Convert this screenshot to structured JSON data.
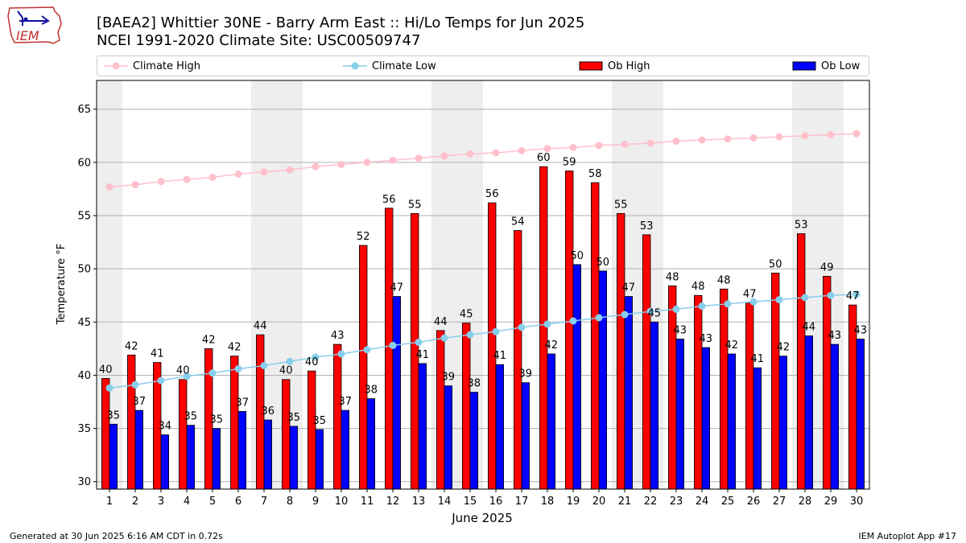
{
  "header": {
    "title": "[BAEA2] Whittier 30NE - Barry Arm East :: Hi/Lo Temps for Jun 2025",
    "subtitle": "NCEI 1991-2020 Climate Site: USC00509747",
    "logo_text": "IEM"
  },
  "legend": {
    "climate_high": "Climate High",
    "climate_low": "Climate Low",
    "ob_high": "Ob High",
    "ob_low": "Ob Low"
  },
  "footer": {
    "generated": "Generated at 30 Jun 2025 6:16 AM CDT in 0.72s",
    "app": "IEM Autoplot App #17"
  },
  "colors": {
    "ob_high": "#ff0000",
    "ob_low": "#0000ff",
    "climate_high": "#ffc0cb",
    "climate_low": "#87ceeb",
    "weekend_band": "#eeeeee",
    "grid": "#b0b0b0"
  },
  "chart_data": {
    "type": "bar",
    "xlabel": "June 2025",
    "ylabel": "Temperature °F",
    "xlim": [
      0.5,
      30.5
    ],
    "ylim": [
      29.3,
      67.7
    ],
    "yticks": [
      30,
      35,
      40,
      45,
      50,
      55,
      60,
      65
    ],
    "grid": "horizontal",
    "legend_position": "top",
    "categories": [
      "1",
      "2",
      "3",
      "4",
      "5",
      "6",
      "7",
      "8",
      "9",
      "10",
      "11",
      "12",
      "13",
      "14",
      "15",
      "16",
      "17",
      "18",
      "19",
      "20",
      "21",
      "22",
      "23",
      "24",
      "25",
      "26",
      "27",
      "28",
      "29",
      "30"
    ],
    "weekend_days": [
      1,
      7,
      8,
      14,
      15,
      21,
      22,
      28,
      29
    ],
    "series": [
      {
        "name": "Ob High",
        "kind": "bar",
        "values": [
          39.7,
          41.9,
          41.2,
          39.6,
          42.5,
          41.8,
          43.8,
          39.6,
          40.4,
          42.9,
          52.2,
          55.7,
          55.2,
          44.2,
          44.9,
          56.2,
          53.6,
          59.6,
          59.2,
          58.1,
          55.2,
          53.2,
          48.4,
          47.5,
          48.1,
          46.8,
          49.6,
          53.3,
          49.3,
          46.6
        ],
        "labels": [
          "40",
          "42",
          "41",
          "40",
          "42",
          "42",
          "44",
          "40",
          "40",
          "43",
          "52",
          "56",
          "55",
          "44",
          "45",
          "56",
          "54",
          "60",
          "59",
          "58",
          "55",
          "53",
          "48",
          "48",
          "48",
          "47",
          "50",
          "53",
          "49",
          "47"
        ]
      },
      {
        "name": "Ob Low",
        "kind": "bar",
        "values": [
          35.4,
          36.7,
          34.4,
          35.3,
          35.0,
          36.6,
          35.8,
          35.2,
          34.9,
          36.7,
          37.8,
          47.4,
          41.1,
          39.0,
          38.4,
          41.0,
          39.3,
          42.0,
          50.4,
          49.8,
          47.4,
          45.0,
          43.4,
          42.6,
          42.0,
          40.7,
          41.8,
          43.7,
          42.9,
          43.4
        ],
        "labels": [
          "35",
          "37",
          "34",
          "35",
          "35",
          "37",
          "36",
          "35",
          "35",
          "37",
          "38",
          "47",
          "41",
          "39",
          "38",
          "41",
          "39",
          "42",
          "50",
          "50",
          "47",
          "45",
          "43",
          "43",
          "42",
          "41",
          "42",
          "44",
          "43",
          "43"
        ]
      },
      {
        "name": "Climate High",
        "kind": "line",
        "values": [
          57.7,
          57.9,
          58.2,
          58.4,
          58.6,
          58.9,
          59.1,
          59.3,
          59.6,
          59.8,
          60.0,
          60.2,
          60.4,
          60.6,
          60.8,
          60.9,
          61.1,
          61.3,
          61.4,
          61.6,
          61.7,
          61.8,
          62.0,
          62.1,
          62.2,
          62.3,
          62.4,
          62.5,
          62.6,
          62.7
        ]
      },
      {
        "name": "Climate Low",
        "kind": "line",
        "values": [
          38.8,
          39.1,
          39.5,
          39.9,
          40.2,
          40.6,
          40.9,
          41.3,
          41.7,
          42.0,
          42.4,
          42.8,
          43.1,
          43.5,
          43.8,
          44.1,
          44.5,
          44.8,
          45.1,
          45.4,
          45.7,
          46.0,
          46.2,
          46.5,
          46.7,
          46.9,
          47.1,
          47.3,
          47.5,
          47.6
        ]
      }
    ]
  }
}
